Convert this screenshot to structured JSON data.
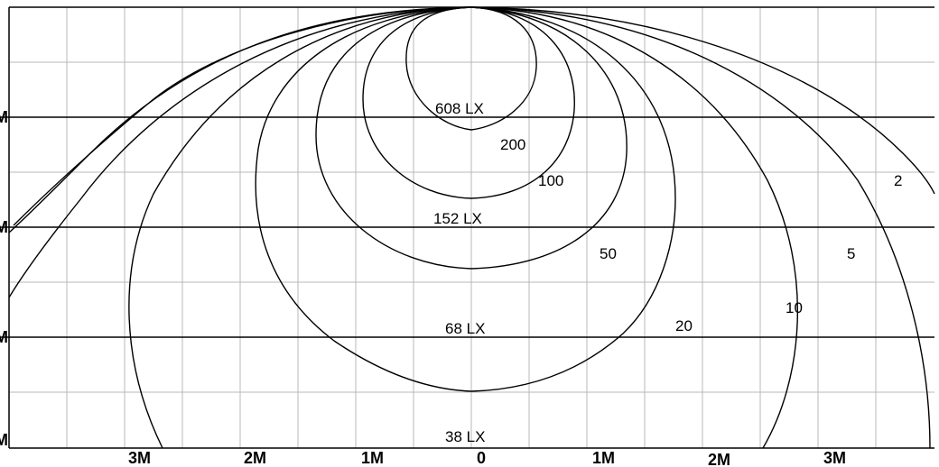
{
  "x_axis_labels": [
    "3M",
    "2M",
    "1M",
    "0",
    "1M",
    "2M",
    "3M"
  ],
  "y_axis_labels": [
    "M",
    "M",
    "M",
    "M"
  ],
  "lux_labels": [
    "608 LX",
    "152 LX",
    "68 LX",
    "38 LX"
  ],
  "isolux_labels": [
    "200",
    "100",
    "2",
    "50",
    "5",
    "10",
    "20"
  ]
}
